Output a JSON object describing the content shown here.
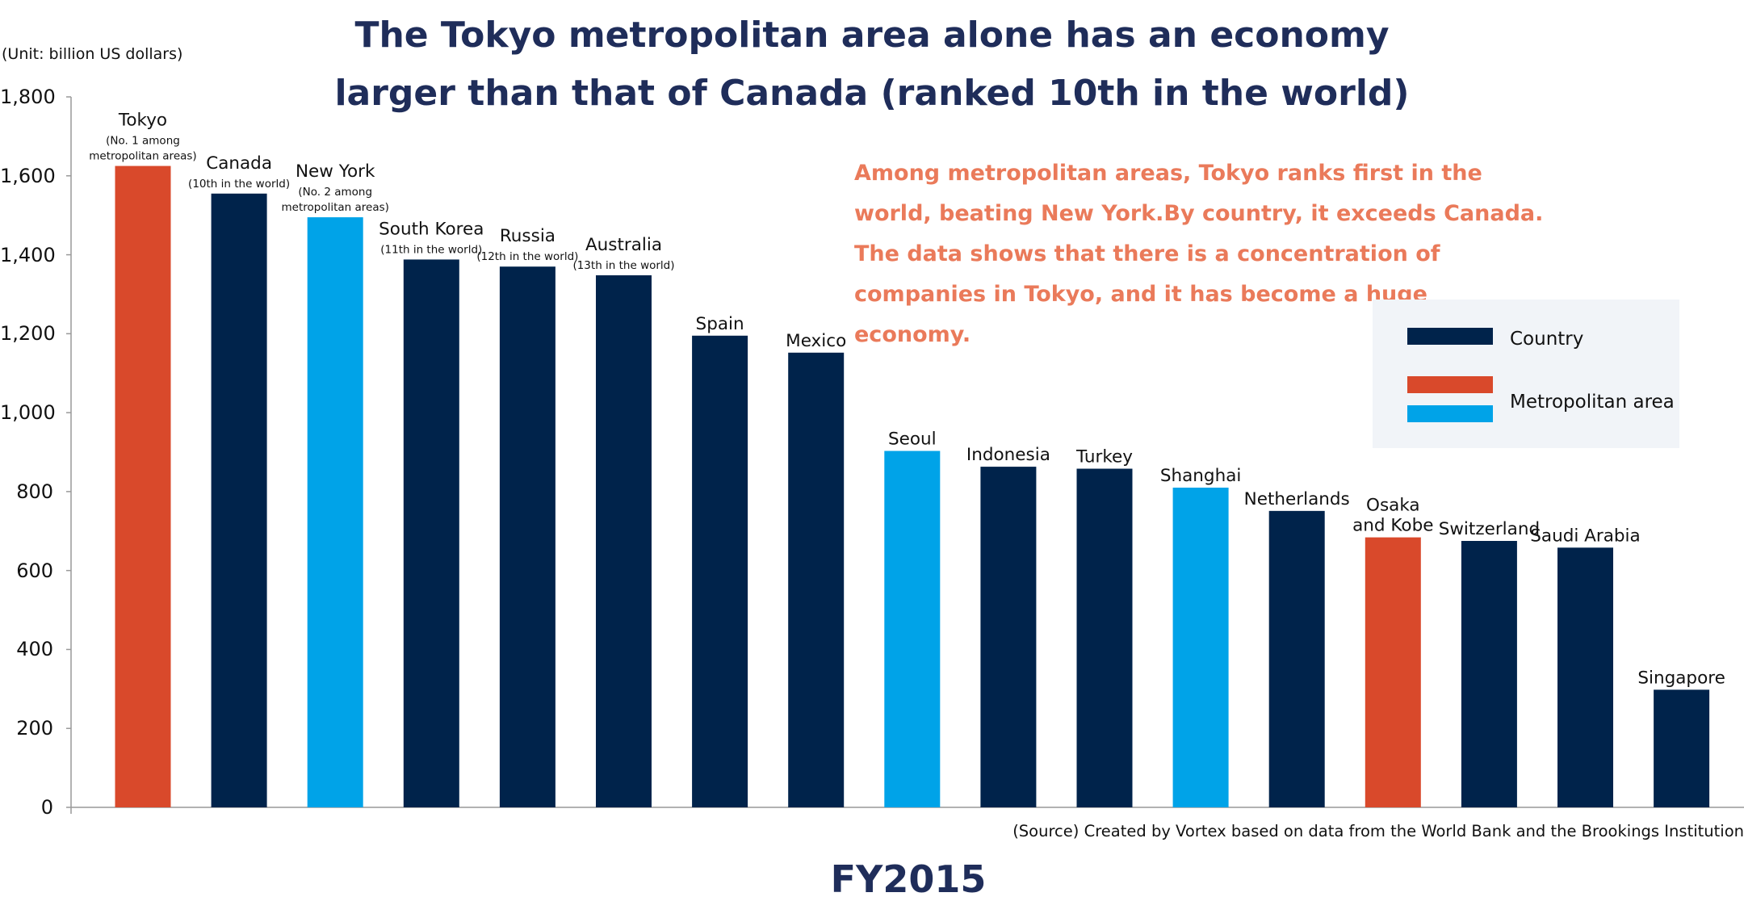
{
  "title": "The Tokyo metropolitan area alone has an economy\nlarger than that of Canada (ranked 10th in the world)",
  "unit_label": "(Unit: billion US dollars)",
  "annotation": "Among metropolitan areas, Tokyo ranks first in the world, beating New York.By country, it exceeds Canada.\nThe data shows that there is a concentration of companies in Tokyo, and it has become a huge economy.",
  "source": "(Source) Created by Vortex based on data from the World Bank and the Brookings Institution",
  "footer": "FY2015",
  "legend": {
    "country": "Country",
    "metro": "Metropolitan area"
  },
  "colors": {
    "country": "#00234b",
    "metro_tokyo": "#d9492b",
    "metro_overseas": "#00a3e8",
    "annotation": "#ea7a5a",
    "title": "#1f2d5a"
  },
  "chart_data": {
    "type": "bar",
    "ylim": [
      0,
      1800
    ],
    "yticks": [
      "0",
      "200",
      "400",
      "600",
      "800",
      "1,000",
      "1,200",
      "1,400",
      "1,600",
      "1,800"
    ],
    "categories": [
      "Tokyo",
      "Canada",
      "New York",
      "South Korea",
      "Russia",
      "Australia",
      "Spain",
      "Mexico",
      "Seoul",
      "Indonesia",
      "Turkey",
      "Shanghai",
      "Netherlands",
      "Osaka\nand Kobe",
      "Switzerland",
      "Saudi Arabia",
      "Singapore"
    ],
    "sublabels": [
      "(No. 1 among\nmetropolitan areas)",
      "(10th in the world)",
      "(No. 2 among\nmetropolitan areas)",
      "(11th in the world)",
      "(12th in the world)",
      "(13th in the world)",
      "",
      "",
      "",
      "",
      "",
      "",
      "",
      "",
      "",
      "",
      ""
    ],
    "kinds": [
      "metro_tokyo",
      "country",
      "metro_overseas",
      "country",
      "country",
      "country",
      "country",
      "country",
      "metro_overseas",
      "country",
      "country",
      "metro_overseas",
      "country",
      "metro_tokyo",
      "country",
      "country",
      "country"
    ],
    "values": [
      1625,
      1555,
      1495,
      1388,
      1370,
      1348,
      1195,
      1152,
      903,
      863,
      858,
      810,
      751,
      684,
      675,
      658,
      298
    ],
    "legend_placement": "right",
    "grid": false
  }
}
